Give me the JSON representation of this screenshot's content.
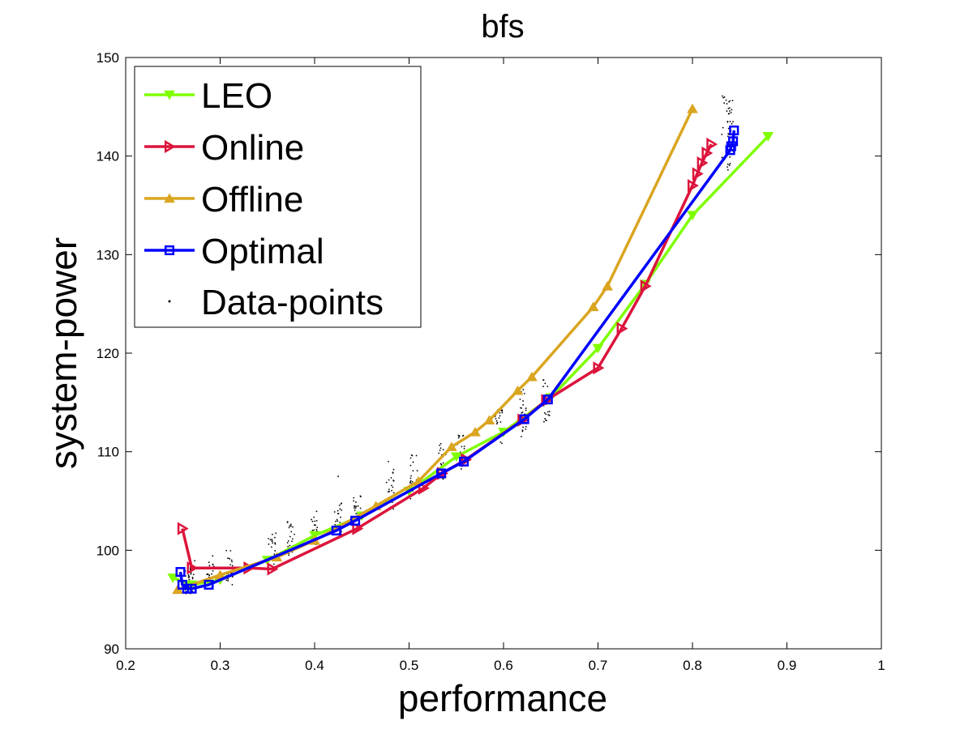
{
  "chart_data": {
    "type": "line",
    "title": "bfs",
    "xlabel": "performance",
    "ylabel": "system-power",
    "xlim": [
      0.2,
      1.0
    ],
    "ylim": [
      90,
      150
    ],
    "xticks": [
      "0.2",
      "0.3",
      "0.4",
      "0.5",
      "0.6",
      "0.7",
      "0.8",
      "0.9",
      "1"
    ],
    "yticks": [
      "90",
      "100",
      "110",
      "120",
      "130",
      "140",
      "150"
    ],
    "grid": false,
    "legend_position": "top-left",
    "series": [
      {
        "name": "LEO",
        "color": "#7FFF00",
        "marker": "triangle-down",
        "x": [
          0.25,
          0.27,
          0.3,
          0.35,
          0.4,
          0.45,
          0.5,
          0.55,
          0.6,
          0.65,
          0.7,
          0.75,
          0.8,
          0.88
        ],
        "y": [
          97.2,
          96.5,
          97.0,
          99.0,
          101.5,
          103.5,
          106.0,
          109.5,
          112.0,
          115.5,
          120.5,
          127.0,
          134.0,
          142.0
        ]
      },
      {
        "name": "Online",
        "color": "#DC143C",
        "marker": "triangle-right",
        "x": [
          0.26,
          0.27,
          0.33,
          0.355,
          0.445,
          0.515,
          0.535,
          0.56,
          0.62,
          0.645,
          0.7,
          0.725,
          0.75,
          0.8,
          0.805,
          0.81,
          0.815,
          0.82
        ],
        "y": [
          102.2,
          98.2,
          98.2,
          98.1,
          102.2,
          106.3,
          107.8,
          109.2,
          113.2,
          115.2,
          118.5,
          122.5,
          126.8,
          137.0,
          138.2,
          139.3,
          140.3,
          141.2
        ]
      },
      {
        "name": "Offline",
        "color": "#DAA520",
        "marker": "triangle-up",
        "x": [
          0.255,
          0.3,
          0.36,
          0.4,
          0.465,
          0.51,
          0.545,
          0.57,
          0.585,
          0.615,
          0.63,
          0.695,
          0.71,
          0.8
        ],
        "y": [
          96.0,
          97.5,
          99.3,
          101.0,
          104.5,
          107.0,
          110.5,
          112.0,
          113.2,
          116.2,
          117.6,
          124.7,
          126.8,
          144.8
        ]
      },
      {
        "name": "Optimal",
        "color": "#0000FF",
        "marker": "square",
        "x": [
          0.258,
          0.26,
          0.265,
          0.27,
          0.288,
          0.423,
          0.443,
          0.534,
          0.558,
          0.622,
          0.647,
          0.84,
          0.841,
          0.843,
          0.844
        ],
        "y": [
          97.8,
          96.5,
          96.1,
          96.1,
          96.5,
          102.0,
          103.0,
          107.8,
          109.0,
          113.3,
          115.3,
          140.6,
          141.0,
          141.5,
          142.6
        ]
      },
      {
        "name": "Data-points",
        "color": "#000000",
        "marker": "dot",
        "x": [],
        "y": []
      }
    ]
  }
}
